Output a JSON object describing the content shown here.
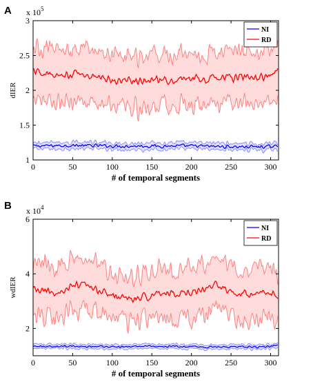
{
  "chart_data": [
    {
      "panel": "A",
      "type": "line",
      "xlabel": "# of temporal segments",
      "ylabel": "dIER",
      "exponent_base": "x 10",
      "exponent_power": "5",
      "xlim": [
        0,
        310
      ],
      "ylim": [
        1,
        3
      ],
      "xticks": [
        0,
        50,
        100,
        150,
        200,
        250,
        300
      ],
      "yticks": [
        1,
        1.5,
        2,
        2.5,
        3
      ],
      "ytick_labels": [
        "1",
        "1.5",
        "2",
        "2.5",
        "3"
      ],
      "n_points": 310,
      "legend": {
        "position": "top-right",
        "entries": [
          "NI",
          "RD"
        ]
      },
      "series": [
        {
          "name": "NI",
          "color": "#0000ff",
          "band_color": "#8c8cff",
          "band_fill": "#dcdcff",
          "mean": 1.19,
          "band_halfwidth": 0.045,
          "noise": 0.02,
          "band_noise": 0.02,
          "mean_profile": [
            [
              0,
              1.2
            ],
            [
              50,
              1.21
            ],
            [
              100,
              1.2
            ],
            [
              150,
              1.2
            ],
            [
              200,
              1.2
            ],
            [
              250,
              1.19
            ],
            [
              300,
              1.19
            ],
            [
              310,
              1.2
            ]
          ]
        },
        {
          "name": "RD",
          "color": "#ff0000",
          "band_color": "#ff8080",
          "band_fill": "#ffd6d6",
          "mean": 2.17,
          "band_halfwidth": 0.38,
          "noise": 0.05,
          "band_noise": 0.11,
          "mean_profile": [
            [
              0,
              2.28
            ],
            [
              30,
              2.2
            ],
            [
              60,
              2.25
            ],
            [
              100,
              2.15
            ],
            [
              150,
              2.15
            ],
            [
              200,
              2.17
            ],
            [
              250,
              2.18
            ],
            [
              300,
              2.2
            ],
            [
              310,
              2.3
            ]
          ]
        }
      ]
    },
    {
      "panel": "B",
      "type": "line",
      "xlabel": "# of temporal segments",
      "ylabel": "wdIER",
      "exponent_base": "x 10",
      "exponent_power": "4",
      "xlim": [
        0,
        310
      ],
      "ylim": [
        1,
        6
      ],
      "xticks": [
        0,
        50,
        100,
        150,
        200,
        250,
        300
      ],
      "yticks": [
        2,
        4,
        6
      ],
      "ytick_labels": [
        "2",
        "4",
        "6"
      ],
      "n_points": 310,
      "legend": {
        "position": "top-right",
        "entries": [
          "NI",
          "RD"
        ]
      },
      "series": [
        {
          "name": "NI",
          "color": "#0000ff",
          "band_color": "#8c8cff",
          "band_fill": "#dcdcff",
          "mean": 1.35,
          "band_halfwidth": 0.08,
          "noise": 0.03,
          "band_noise": 0.03,
          "mean_profile": [
            [
              0,
              1.35
            ],
            [
              50,
              1.35
            ],
            [
              100,
              1.33
            ],
            [
              150,
              1.35
            ],
            [
              200,
              1.32
            ],
            [
              250,
              1.32
            ],
            [
              300,
              1.33
            ],
            [
              310,
              1.4
            ]
          ]
        },
        {
          "name": "RD",
          "color": "#ff0000",
          "band_color": "#ff8080",
          "band_fill": "#ffd6d6",
          "mean": 3.3,
          "band_halfwidth": 0.9,
          "noise": 0.12,
          "band_noise": 0.3,
          "mean_profile": [
            [
              0,
              3.4
            ],
            [
              30,
              3.3
            ],
            [
              60,
              3.6
            ],
            [
              100,
              3.2
            ],
            [
              130,
              3.05
            ],
            [
              160,
              3.3
            ],
            [
              200,
              3.3
            ],
            [
              230,
              3.6
            ],
            [
              260,
              3.3
            ],
            [
              300,
              3.3
            ],
            [
              310,
              3.2
            ]
          ]
        }
      ]
    }
  ]
}
